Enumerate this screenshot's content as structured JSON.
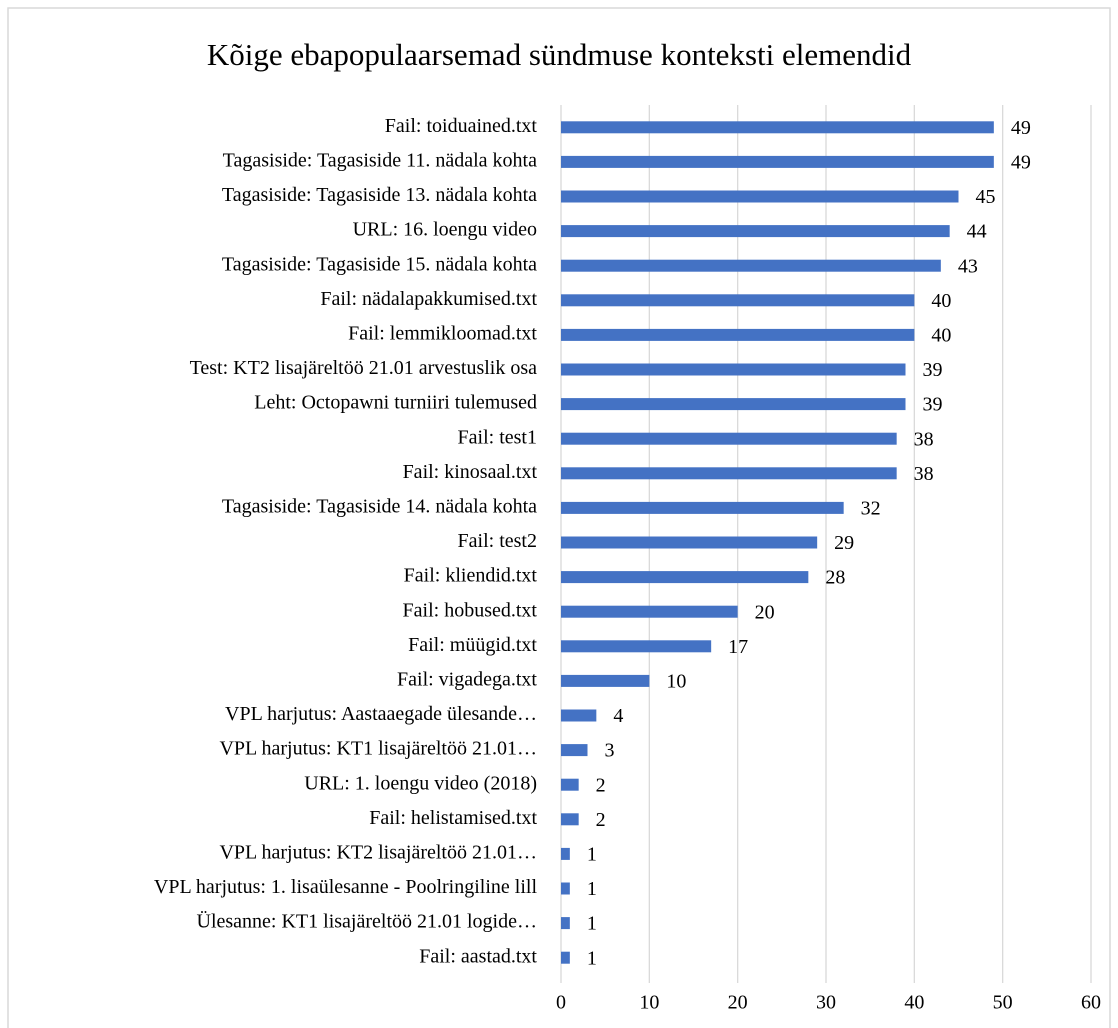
{
  "chart_data": {
    "type": "bar",
    "orientation": "horizontal",
    "title": "Kõige ebapopulaarsemad sündmuse konteksti elemendid",
    "categories": [
      "Fail: toiduained.txt",
      "Tagasiside: Tagasiside 11. nädala kohta",
      "Tagasiside: Tagasiside 13. nädala kohta",
      "URL: 16. loengu video",
      "Tagasiside: Tagasiside 15. nädala kohta",
      "Fail: nädalapakkumised.txt",
      "Fail: lemmikloomad.txt",
      "Test: KT2 lisajäreltöö 21.01 arvestuslik osa",
      "Leht: Octopawni turniiri tulemused",
      "Fail: test1",
      "Fail: kinosaal.txt",
      "Tagasiside: Tagasiside 14. nädala kohta",
      "Fail: test2",
      "Fail: kliendid.txt",
      "Fail: hobused.txt",
      "Fail: müügid.txt",
      "Fail: vigadega.txt",
      "VPL harjutus: Aastaaegade ülesande…",
      "VPL harjutus: KT1 lisajäreltöö 21.01…",
      "URL: 1. loengu video (2018)",
      "Fail: helistamised.txt",
      "VPL harjutus: KT2 lisajäreltöö 21.01…",
      "VPL harjutus: 1. lisaülesanne - Poolringiline lill",
      "Ülesanne: KT1 lisajäreltöö 21.01 logide…",
      "Fail: aastad.txt"
    ],
    "values": [
      49,
      49,
      45,
      44,
      43,
      40,
      40,
      39,
      39,
      38,
      38,
      32,
      29,
      28,
      20,
      17,
      10,
      4,
      3,
      2,
      2,
      1,
      1,
      1,
      1
    ],
    "color": "#4472c4",
    "xlim": [
      0,
      60
    ],
    "xticks": [
      0,
      10,
      20,
      30,
      40,
      50,
      60
    ],
    "grid": true
  }
}
